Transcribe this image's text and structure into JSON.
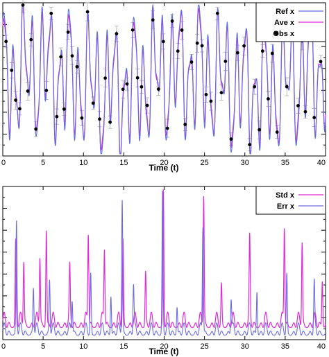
{
  "colors": {
    "ref": "#5b6fe0",
    "ave": "#e02ad8",
    "obs": "#000000",
    "err_bar": "#aaaaaa",
    "std": "#e02ad8",
    "err": "#6a6ae6"
  },
  "chart_data": [
    {
      "type": "line",
      "xlabel": "Time (t)",
      "xlim": [
        0,
        40
      ],
      "xticks": [
        0,
        5,
        10,
        15,
        20,
        25,
        30,
        35,
        40
      ],
      "xtick_labels": [
        "0",
        "5",
        "10",
        "15",
        "20",
        "25",
        "30",
        "35",
        "40"
      ],
      "ylim": [
        -1,
        1
      ],
      "legend_position": "top-right",
      "series": [
        {
          "name": "Ref x",
          "style": "line",
          "color": "#5b6fe0"
        },
        {
          "name": "Ave x",
          "style": "line",
          "color": "#e02ad8"
        },
        {
          "name": "Obs x",
          "style": "points-with-error-bars",
          "color": "#000000"
        }
      ],
      "obs": {
        "x": [
          0.4,
          1.1,
          1.6,
          2.1,
          2.5,
          3.1,
          3.5,
          4.1,
          5.4,
          6.0,
          6.7,
          7.2,
          7.6,
          8.1,
          8.6,
          9.2,
          9.8,
          10.5,
          11.2,
          12.0,
          12.7,
          13.3,
          14.1,
          14.9,
          15.4,
          16.1,
          16.7,
          17.2,
          17.9,
          18.6,
          19.3,
          19.9,
          20.4,
          21.0,
          21.7,
          22.2,
          22.6,
          23.4,
          24.1,
          24.7,
          25.2,
          25.8,
          26.6,
          27.1,
          27.6,
          28.3,
          29.1,
          29.9,
          30.6,
          31.2,
          31.8,
          32.2,
          32.9,
          33.4,
          34.0,
          34.7,
          35.2,
          35.9,
          36.6,
          37.1,
          37.5,
          38.2,
          38.6,
          39.4
        ]
      }
    },
    {
      "type": "line",
      "xlabel": "Time (t)",
      "xlim": [
        0,
        40
      ],
      "xticks": [
        0,
        5,
        10,
        15,
        20,
        25,
        30,
        35,
        40
      ],
      "xtick_labels": [
        "0",
        "5",
        "10",
        "15",
        "20",
        "25",
        "30",
        "35",
        "40"
      ],
      "ylim": [
        0,
        1
      ],
      "legend_position": "top-right",
      "series": [
        {
          "name": "Std x",
          "style": "line",
          "color": "#e02ad8"
        },
        {
          "name": "Err x",
          "style": "line",
          "color": "#6a6ae6"
        }
      ]
    }
  ]
}
